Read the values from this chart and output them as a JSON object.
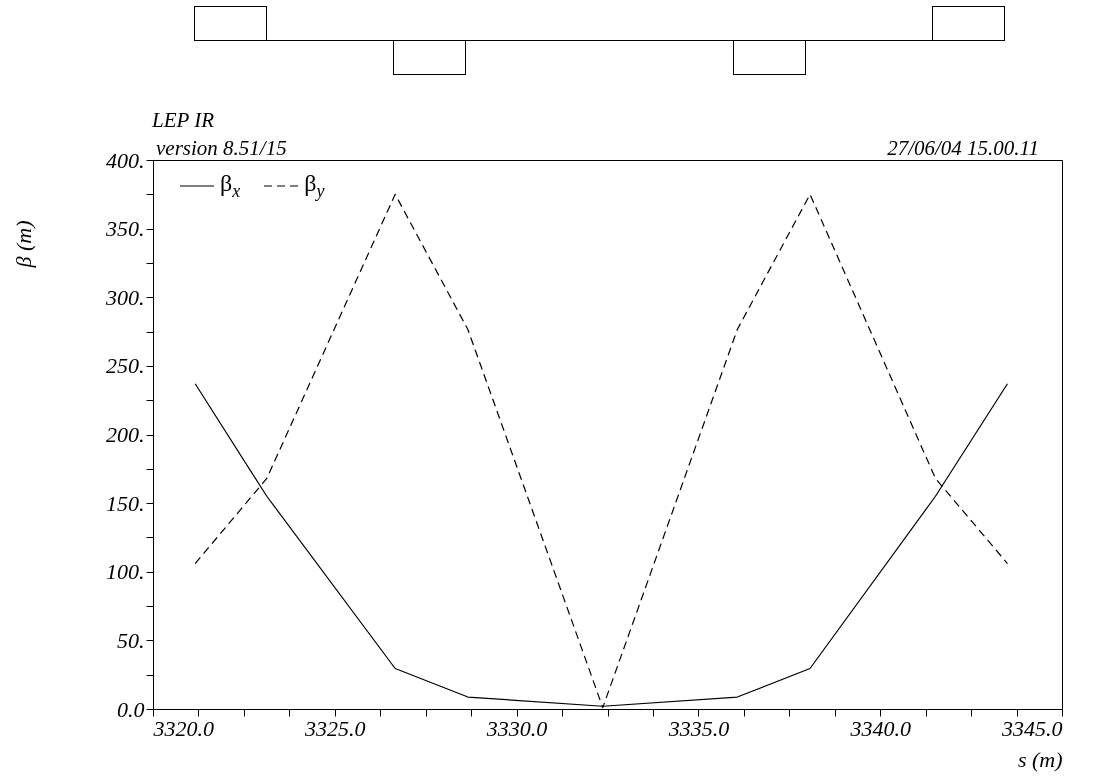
{
  "chart_data": {
    "type": "line",
    "title": "LEP IR",
    "subtitle": "version 8.51/15",
    "xlabel": "s (m)",
    "ylabel": "β (m)",
    "annotations": [
      "27/06/04  15.00.11"
    ],
    "x": [
      3321.16,
      3323.13,
      3326.66,
      3328.66,
      3332.37,
      3336.07,
      3338.07,
      3341.52,
      3343.5
    ],
    "series": [
      {
        "name": "β$_{x}$",
        "color": "#000000",
        "line_style": "solid",
        "values": [
          237,
          155,
          29.5,
          8.7,
          2,
          8.7,
          29.5,
          155,
          237
        ]
      },
      {
        "name": "β$_{y}$",
        "color": "#000000",
        "line_style": "dashed",
        "values": [
          106,
          168,
          375,
          276.5,
          1,
          276.5,
          375,
          168,
          106
        ]
      }
    ],
    "xlim": [
      3320,
      3345
    ],
    "ylim": [
      0,
      400
    ],
    "xticks": [
      {
        "value": 3320,
        "label": "3320.0"
      },
      {
        "value": 3321.25,
        "label": null
      },
      {
        "value": 3322.5,
        "label": null
      },
      {
        "value": 3323.75,
        "label": null
      },
      {
        "value": 3325,
        "label": "3325.0"
      },
      {
        "value": 3326.25,
        "label": null
      },
      {
        "value": 3327.5,
        "label": null
      },
      {
        "value": 3328.75,
        "label": null
      },
      {
        "value": 3330,
        "label": "3330.0"
      },
      {
        "value": 3331.25,
        "label": null
      },
      {
        "value": 3332.5,
        "label": null
      },
      {
        "value": 3333.75,
        "label": null
      },
      {
        "value": 3335,
        "label": "3335.0"
      },
      {
        "value": 3336.25,
        "label": null
      },
      {
        "value": 3337.5,
        "label": null
      },
      {
        "value": 3338.75,
        "label": null
      },
      {
        "value": 3340,
        "label": "3340.0"
      },
      {
        "value": 3341.25,
        "label": null
      },
      {
        "value": 3342.5,
        "label": null
      },
      {
        "value": 3343.75,
        "label": null
      },
      {
        "value": 3345,
        "label": "3345.0"
      }
    ],
    "yticks": [
      {
        "value": 0,
        "label": "0.0"
      },
      {
        "value": 25,
        "label": null
      },
      {
        "value": 50,
        "label": "50."
      },
      {
        "value": 75,
        "label": null
      },
      {
        "value": 100,
        "label": "100."
      },
      {
        "value": 125,
        "label": null
      },
      {
        "value": 150,
        "label": "150."
      },
      {
        "value": 175,
        "label": null
      },
      {
        "value": 200,
        "label": "200."
      },
      {
        "value": 225,
        "label": null
      },
      {
        "value": 250,
        "label": "250."
      },
      {
        "value": 275,
        "label": null
      },
      {
        "value": 300,
        "label": "300."
      },
      {
        "value": 325,
        "label": null
      },
      {
        "value": 350,
        "label": "350."
      },
      {
        "value": 375,
        "label": null
      },
      {
        "value": 400,
        "label": "400."
      }
    ],
    "grid": false,
    "legend": "top left"
  }
}
